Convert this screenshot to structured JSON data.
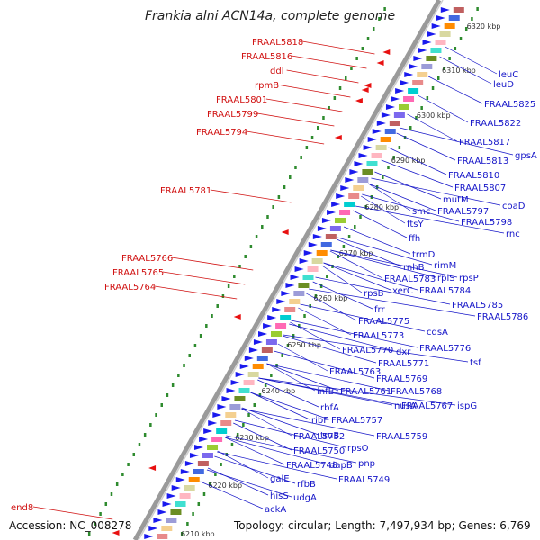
{
  "title": "Frankia alni ACN14a, complete genome",
  "accession": "Accession: NC_008278",
  "topology": "Topology: circular; Length: 7,497,934 bp; Genes: 6,769",
  "colors": {
    "backbone": "#9a9a9a",
    "forward_gene": "#1a1aee",
    "reverse_gene": "#e81010",
    "left_label": "#d01010",
    "right_label": "#1515c8",
    "dots": "#2e8b2e"
  },
  "kbp_ticks": [
    "6210 kbp",
    "6220 kbp",
    "6230 kbp",
    "6240 kbp",
    "6250 kbp",
    "6260 kbp",
    "6270 kbp",
    "6280 kbp",
    "6290 kbp",
    "6300 kbp",
    "6310 kbp",
    "6320 kbp"
  ],
  "left_labels": [
    "FRAAL5818",
    "FRAAL5816",
    "ddl",
    "rpmB",
    "FRAAL5801",
    "FRAAL5799",
    "FRAAL5794",
    "FRAAL5781",
    "FRAAL5766",
    "FRAAL5765",
    "FRAAL5764",
    "end8"
  ],
  "right_labels": [
    "leuC",
    "leuD",
    "FRAAL5825",
    "FRAAL5822",
    "FRAAL5817",
    "gpsA",
    "FRAAL5813",
    "FRAAL5810",
    "FRAAL5807",
    "coaD",
    "mutM",
    "FRAAL5797",
    "smc",
    "FRAAL5798",
    "rnc",
    "ftsY",
    "ffh",
    "trmD",
    "rimM",
    "rnhB",
    "rpsP",
    "FRAAL5783",
    "rplS",
    "xerC",
    "FRAAL5784",
    "rpsB",
    "FRAAL5785",
    "frr",
    "FRAAL5786",
    "FRAAL5775",
    "cdsA",
    "FRAAL5773",
    "FRAAL5776",
    "FRAAL5770",
    "dxr",
    "tsf",
    "FRAAL5771",
    "FRAAL5763",
    "FRAAL5769",
    "infB",
    "FRAAL5761",
    "FRAAL5768",
    "nusA",
    "FRAAL5767",
    "ispG",
    "rbfA",
    "ribF",
    "FRAAL5757",
    "truB",
    "FRAAL5759",
    "FRAAL5752",
    "rpsO",
    "FRAAL5750",
    "pnp",
    "FRAAL5748",
    "dapB",
    "FRAAL5749",
    "galE",
    "rfbB",
    "hisS",
    "udgA",
    "ackA"
  ]
}
